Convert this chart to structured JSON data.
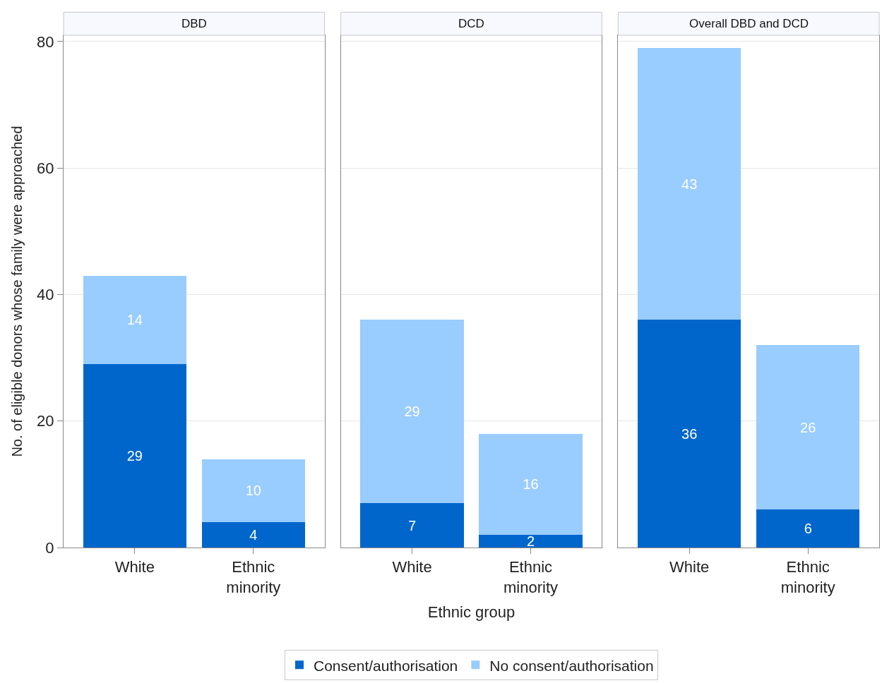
{
  "chart_data": [
    {
      "type": "bar",
      "title": "DBD",
      "ylabel": "No. of eligible donors whose family were approached",
      "categories": [
        "White",
        "Ethnic minority"
      ],
      "stacked": true,
      "data_labels": true,
      "ylim": [
        0,
        81
      ],
      "yticks": [
        0,
        20,
        40,
        60,
        80
      ],
      "grid": "y",
      "legend": "bottom",
      "series": [
        {
          "name": "Consent/authorisation",
          "color": "#0066cc",
          "values": [
            29,
            4
          ]
        },
        {
          "name": "No consent/authorisation",
          "color": "#99ccff",
          "values": [
            14,
            10
          ]
        }
      ]
    },
    {
      "type": "bar",
      "title": "DCD",
      "xlabel": "Ethnic group",
      "categories": [
        "White",
        "Ethnic minority"
      ],
      "stacked": true,
      "data_labels": true,
      "ylim": [
        0,
        81
      ],
      "yticks": [
        0,
        20,
        40,
        60,
        80
      ],
      "grid": "y",
      "tick_labels": "x",
      "series": [
        {
          "color": "#0066cc",
          "values": [
            7,
            2
          ]
        },
        {
          "color": "#99ccff",
          "values": [
            29,
            16
          ]
        }
      ]
    },
    {
      "type": "bar",
      "title": "Overall DBD and DCD",
      "categories": [
        "White",
        "Ethnic minority"
      ],
      "stacked": true,
      "data_labels": true,
      "ylim": [
        0,
        81
      ],
      "yticks": [
        0,
        20,
        40,
        60,
        80
      ],
      "grid": "y",
      "tick_labels": "x",
      "series": [
        {
          "color": "#0066cc",
          "values": [
            36,
            6
          ]
        },
        {
          "color": "#99ccff",
          "values": [
            43,
            26
          ]
        }
      ]
    }
  ]
}
